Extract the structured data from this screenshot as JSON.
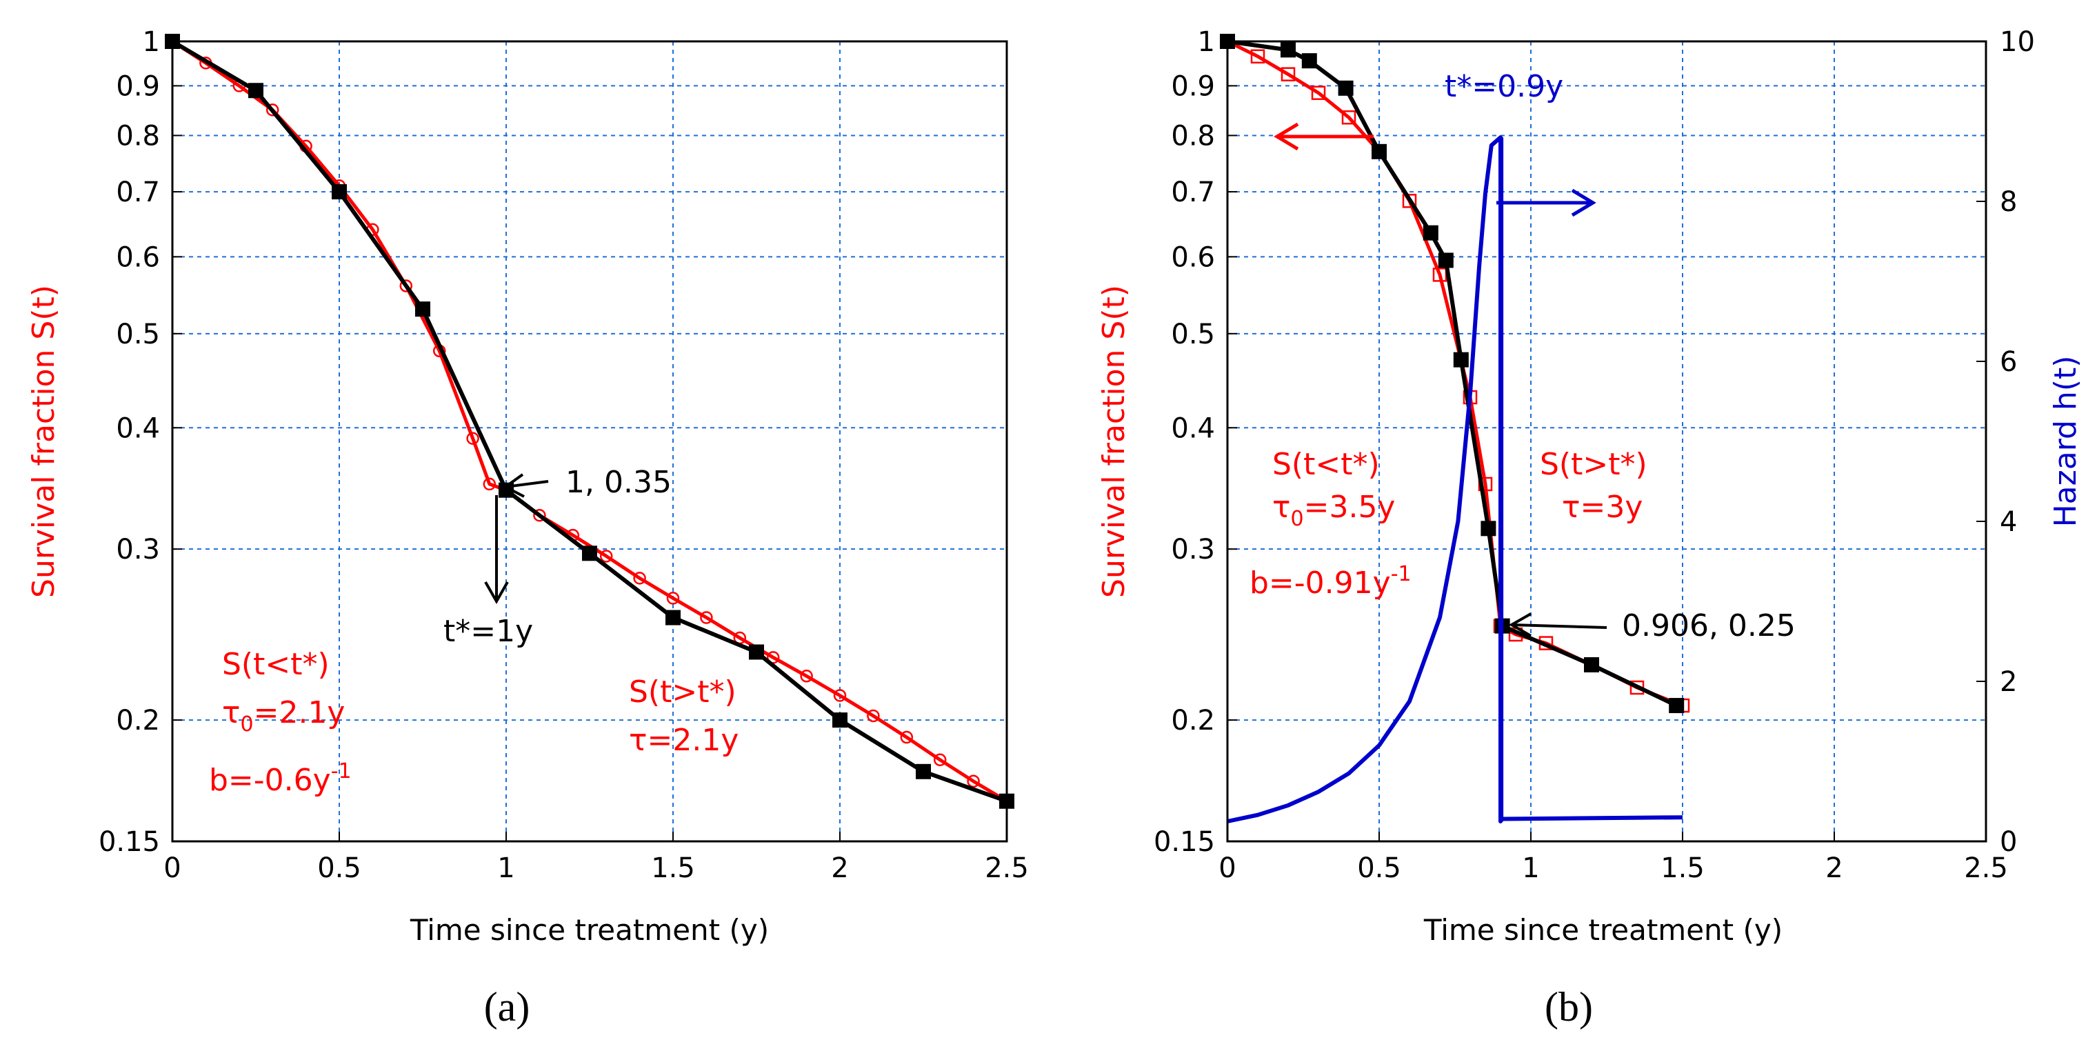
{
  "colors": {
    "red": "#ff0000",
    "black": "#000000",
    "blue": "#0000cc",
    "grid": "#1f6fd8"
  },
  "chart_data": [
    {
      "panel": "(a)",
      "type": "line",
      "xlabel": "Time since treatment (y)",
      "ylabel": "Survival fraction S(t)",
      "xlim": [
        0,
        2.5
      ],
      "ylim": [
        0.15,
        1
      ],
      "yscale": "log",
      "grid": true,
      "xticks": [
        0,
        0.5,
        1,
        1.5,
        2,
        2.5
      ],
      "xtick_labels": [
        "0",
        "0.5",
        "1",
        "1.5",
        "2",
        "2.5"
      ],
      "yticks": [
        0.15,
        0.2,
        0.3,
        0.4,
        0.5,
        0.6,
        0.7,
        0.8,
        0.9,
        1
      ],
      "ytick_labels": [
        "0.15",
        "0.2",
        "0.3",
        "0.4",
        "0.5",
        "0.6",
        "0.7",
        "0.8",
        "0.9",
        "1"
      ],
      "series": [
        {
          "color": "#ff0000",
          "marker": "circle",
          "x": [
            0,
            0.1,
            0.2,
            0.3,
            0.4,
            0.5,
            0.6,
            0.7,
            0.8,
            0.9,
            0.95,
            1.0,
            1.1,
            1.2,
            1.3,
            1.4,
            1.5,
            1.6,
            1.7,
            1.8,
            1.9,
            2.0,
            2.1,
            2.2,
            2.3,
            2.4,
            2.5
          ],
          "y": [
            1.0,
            0.95,
            0.9,
            0.85,
            0.78,
            0.71,
            0.64,
            0.56,
            0.48,
            0.39,
            0.35,
            0.345,
            0.325,
            0.31,
            0.295,
            0.28,
            0.267,
            0.255,
            0.243,
            0.232,
            0.222,
            0.212,
            0.202,
            0.192,
            0.182,
            0.173,
            0.165
          ]
        },
        {
          "color": "#000000",
          "marker": "square",
          "x": [
            0,
            0.25,
            0.5,
            0.75,
            1.0,
            1.25,
            1.5,
            1.75,
            2.0,
            2.25,
            2.5
          ],
          "y": [
            1.0,
            0.89,
            0.7,
            0.53,
            0.345,
            0.297,
            0.255,
            0.235,
            0.2,
            0.177,
            0.165
          ]
        }
      ],
      "annotations": [
        {
          "text": "1, 0.35",
          "color": "#000000"
        },
        {
          "text": "t*=1y",
          "color": "#000000"
        },
        {
          "lines": [
            "S(t<t*)",
            "τ0=2.1y",
            "b=-0.6y-1"
          ],
          "color": "#ff0000"
        },
        {
          "lines": [
            "S(t>t*)",
            "τ=2.1y"
          ],
          "color": "#ff0000"
        }
      ]
    },
    {
      "panel": "(b)",
      "type": "line",
      "xlabel": "Time since treatment (y)",
      "ylabel": "Survival fraction S(t)",
      "y2label": "Hazard h(t)",
      "xlim": [
        0,
        2.5
      ],
      "ylim": [
        0.15,
        1
      ],
      "y2lim": [
        0,
        10
      ],
      "yscale": "log",
      "grid": true,
      "xticks": [
        0,
        0.5,
        1,
        1.5,
        2,
        2.5
      ],
      "xtick_labels": [
        "0",
        "0.5",
        "1",
        "1.5",
        "2",
        "2.5"
      ],
      "yticks": [
        0.15,
        0.2,
        0.3,
        0.4,
        0.5,
        0.6,
        0.7,
        0.8,
        0.9,
        1
      ],
      "ytick_labels": [
        "0.15",
        "0.2",
        "0.3",
        "0.4",
        "0.5",
        "0.6",
        "0.7",
        "0.8",
        "0.9",
        "1"
      ],
      "y2ticks": [
        0,
        2,
        4,
        6,
        8,
        10
      ],
      "y2tick_labels": [
        "0",
        "2",
        "4",
        "6",
        "8",
        "10"
      ],
      "series": [
        {
          "color": "#ff0000",
          "marker": "square-open",
          "axis": "left",
          "x": [
            0,
            0.1,
            0.2,
            0.3,
            0.4,
            0.5,
            0.6,
            0.7,
            0.8,
            0.85,
            0.9,
            0.95,
            1.05,
            1.2,
            1.35,
            1.5
          ],
          "y": [
            1.0,
            0.965,
            0.925,
            0.885,
            0.835,
            0.77,
            0.685,
            0.575,
            0.43,
            0.35,
            0.25,
            0.245,
            0.24,
            0.228,
            0.216,
            0.207
          ]
        },
        {
          "color": "#000000",
          "marker": "square",
          "axis": "left",
          "x": [
            0,
            0.2,
            0.27,
            0.39,
            0.5,
            0.67,
            0.72,
            0.77,
            0.86,
            0.906,
            1.2,
            1.48
          ],
          "y": [
            1.0,
            0.98,
            0.955,
            0.895,
            0.77,
            0.635,
            0.595,
            0.47,
            0.315,
            0.25,
            0.228,
            0.207
          ]
        },
        {
          "color": "#0000cc",
          "marker": "none",
          "axis": "right",
          "x": [
            0,
            0.1,
            0.2,
            0.3,
            0.4,
            0.5,
            0.6,
            0.7,
            0.76,
            0.8,
            0.83,
            0.85,
            0.87,
            0.9,
            0.9,
            0.906,
            1.5
          ],
          "y": [
            0.25,
            0.33,
            0.45,
            0.62,
            0.85,
            1.2,
            1.75,
            2.8,
            4.0,
            5.6,
            7.2,
            8.1,
            8.7,
            8.8,
            0.25,
            0.28,
            0.3
          ]
        }
      ],
      "annotations": [
        {
          "text": "t*=0.9y",
          "color": "#0000cc"
        },
        {
          "text": "0.906, 0.25",
          "color": "#000000"
        },
        {
          "lines": [
            "S(t<t*)",
            "τ0=3.5y",
            "b=-0.91y-1"
          ],
          "color": "#ff0000"
        },
        {
          "lines": [
            "S(t>t*)",
            "τ=3y"
          ],
          "color": "#ff0000"
        }
      ]
    }
  ]
}
